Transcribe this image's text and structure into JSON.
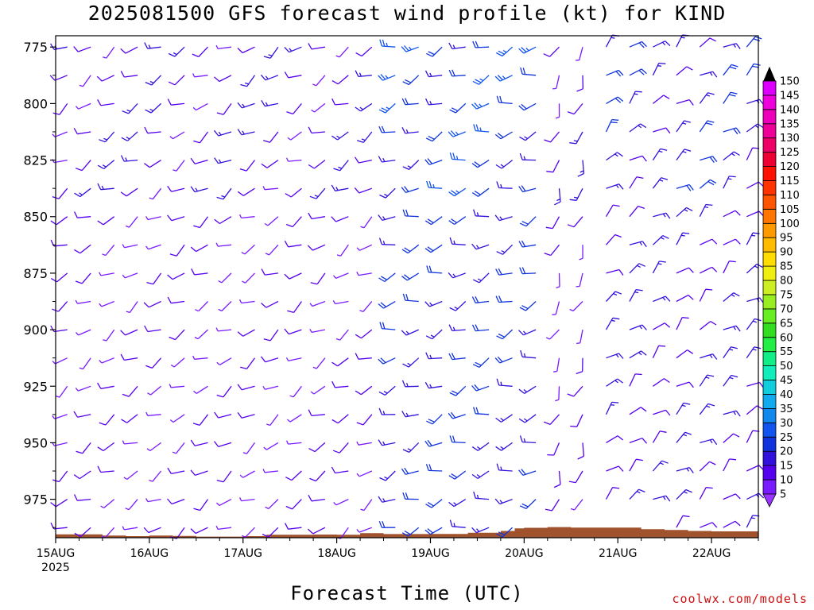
{
  "title": "2025081500 GFS forecast wind profile (kt) for KIND",
  "xlabel": "Forecast Time (UTC)",
  "credit": "coolwx.com/models",
  "chart_data": {
    "type": "wind-barb-profile",
    "title": "2025081500 GFS forecast wind profile (kt) for KIND",
    "xlabel": "Forecast Time (UTC)",
    "ylabel": "",
    "x_tick_labels": [
      "15AUG",
      "16AUG",
      "17AUG",
      "18AUG",
      "19AUG",
      "20AUG",
      "21AUG",
      "22AUG"
    ],
    "x_start_year": "2025",
    "x_range_days": [
      0,
      7.5
    ],
    "y_tick_labels": [
      "775",
      "800",
      "825",
      "850",
      "875",
      "900",
      "925",
      "950",
      "975"
    ],
    "y_range_hpa": [
      770,
      992
    ],
    "y_axis": "pressure (hPa), increasing downward",
    "time_step_hours": 6,
    "pressure_levels_hpa": [
      775,
      787.5,
      800,
      812.5,
      825,
      837.5,
      850,
      862.5,
      875,
      887.5,
      900,
      912.5,
      925,
      937.5,
      950,
      962.5,
      975,
      987.5
    ],
    "speed_units": "kt",
    "colorbar": {
      "labels": [
        5,
        10,
        15,
        20,
        25,
        30,
        35,
        40,
        45,
        50,
        55,
        60,
        65,
        70,
        75,
        80,
        85,
        90,
        95,
        100,
        105,
        110,
        115,
        120,
        125,
        130,
        135,
        140,
        145,
        150
      ],
      "colors": [
        "#9933ff",
        "#7a1aff",
        "#5500ee",
        "#3311dd",
        "#1133dd",
        "#1155ee",
        "#1188ee",
        "#11aaee",
        "#11ccdd",
        "#11eebb",
        "#11ee88",
        "#22ee44",
        "#33dd22",
        "#66ee22",
        "#99ee22",
        "#ccee22",
        "#eeee11",
        "#ffdd00",
        "#ffbb00",
        "#ff9900",
        "#ff7700",
        "#ff5500",
        "#ff3300",
        "#ff1100",
        "#ee0033",
        "#ee0066",
        "#ee0099",
        "#ee00bb",
        "#ee00dd",
        "#dd00ff"
      ]
    },
    "terrain_color": "#a0522d",
    "barb_segments": [
      {
        "from_day": 0.0,
        "to_day": 3.5,
        "direction_deg": 240,
        "speed_kt": 10,
        "note": "W to SW, light, purple"
      },
      {
        "from_day": 3.5,
        "to_day": 5.25,
        "direction_deg": 250,
        "speed_kt": 20,
        "note": "WSW, blue at 800-975 hPa"
      },
      {
        "from_day": 5.25,
        "to_day": 5.75,
        "direction_deg": 200,
        "speed_kt": 10,
        "note": "SSW, light"
      },
      {
        "from_day": 5.75,
        "to_day": 7.5,
        "direction_deg": 50,
        "speed_kt": 15,
        "note": "NE, purple to blue"
      }
    ],
    "surface_pressure_hpa": [
      {
        "day": 0.0,
        "p": 990.5
      },
      {
        "day": 0.4,
        "p": 990.5
      },
      {
        "day": 0.5,
        "p": 991.0
      },
      {
        "day": 0.75,
        "p": 991.3
      },
      {
        "day": 1.0,
        "p": 991.0
      },
      {
        "day": 1.25,
        "p": 991.2
      },
      {
        "day": 1.5,
        "p": 991.5
      },
      {
        "day": 2.0,
        "p": 991.3
      },
      {
        "day": 2.25,
        "p": 990.7
      },
      {
        "day": 2.75,
        "p": 990.6
      },
      {
        "day": 3.0,
        "p": 990.7
      },
      {
        "day": 3.25,
        "p": 990.0
      },
      {
        "day": 3.5,
        "p": 990.4
      },
      {
        "day": 4.0,
        "p": 990.3
      },
      {
        "day": 4.4,
        "p": 989.8
      },
      {
        "day": 4.75,
        "p": 989.0
      },
      {
        "day": 4.9,
        "p": 987.9
      },
      {
        "day": 5.0,
        "p": 987.6
      },
      {
        "day": 5.25,
        "p": 987.3
      },
      {
        "day": 5.5,
        "p": 987.5
      },
      {
        "day": 6.0,
        "p": 987.5
      },
      {
        "day": 6.25,
        "p": 988.2
      },
      {
        "day": 6.5,
        "p": 988.6
      },
      {
        "day": 6.75,
        "p": 989.0
      },
      {
        "day": 7.0,
        "p": 989.2
      },
      {
        "day": 7.5,
        "p": 989.3
      }
    ]
  }
}
